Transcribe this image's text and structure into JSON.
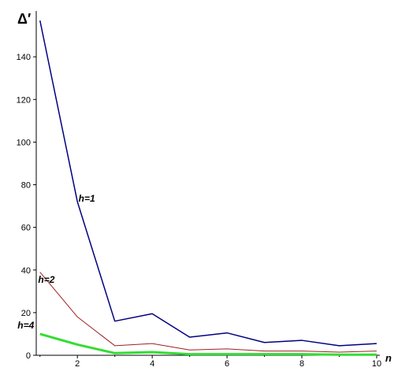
{
  "chart_data": {
    "type": "line",
    "ylabel": "Δ′",
    "xlabel": "n",
    "xlim": [
      0.9,
      10
    ],
    "ylim": [
      0,
      160
    ],
    "x_ticks": [
      2,
      4,
      6,
      8,
      10
    ],
    "y_ticks": [
      0,
      20,
      40,
      60,
      80,
      100,
      120,
      140
    ],
    "x": [
      1,
      2,
      3,
      4,
      5,
      6,
      7,
      8,
      9,
      10
    ],
    "series": [
      {
        "name": "h=1",
        "color": "#000080",
        "values": [
          157,
          72,
          16,
          19.5,
          8.5,
          10.5,
          6,
          7,
          4.5,
          5.5
        ]
      },
      {
        "name": "h=2",
        "color": "#a02020",
        "values": [
          39,
          18,
          4.5,
          5.5,
          2.5,
          3,
          2,
          2,
          1.5,
          2
        ]
      },
      {
        "name": "h=4",
        "color": "#33dd33",
        "values": [
          10,
          5,
          1,
          1.5,
          0.5,
          0.5,
          0.5,
          0.5,
          0.3,
          0.3
        ]
      }
    ],
    "grid": false
  }
}
